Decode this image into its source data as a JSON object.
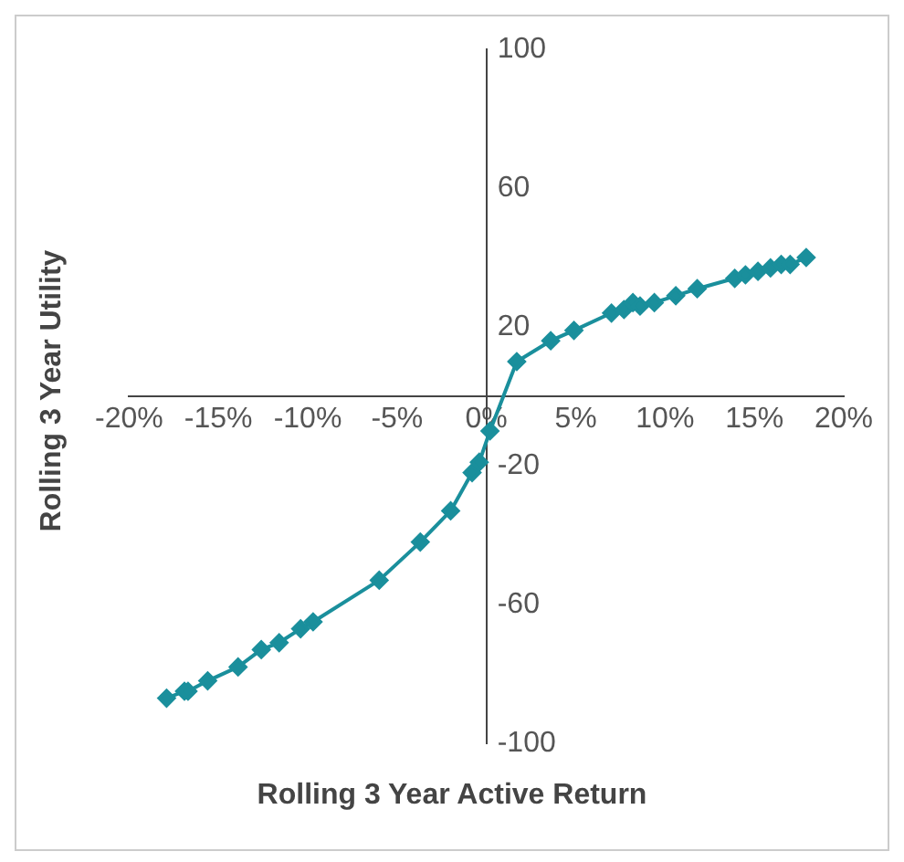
{
  "chart_data": {
    "type": "line",
    "xlabel": "Rolling 3 Year Active Return",
    "ylabel": "Rolling 3 Year Utility",
    "series": [
      {
        "color": "#1a8f9c",
        "x": [
          -17.9,
          -16.9,
          -16.7,
          -15.6,
          -13.9,
          -12.6,
          -11.6,
          -10.4,
          -9.7,
          -6.0,
          -3.7,
          -2.0,
          -0.8,
          -0.4,
          0.2,
          1.7,
          3.6,
          4.9,
          7.0,
          7.7,
          8.2,
          8.6,
          9.4,
          10.6,
          11.8,
          13.9,
          14.5,
          15.2,
          15.9,
          16.5,
          17.0,
          17.9
        ],
        "values": [
          -87,
          -85,
          -85,
          -82,
          -78,
          -73,
          -71,
          -67,
          -65,
          -53,
          -42,
          -33,
          -22,
          -19,
          -10,
          10,
          16,
          19,
          24,
          25,
          27,
          26,
          27,
          29,
          31,
          34,
          35,
          36,
          37,
          38,
          38,
          40
        ]
      }
    ],
    "xlim": [
      -20,
      20
    ],
    "ylim": [
      -100,
      100
    ],
    "xticks": [
      {
        "value": -20,
        "label": "-20%"
      },
      {
        "value": -15,
        "label": "-15%"
      },
      {
        "value": -10,
        "label": "-10%"
      },
      {
        "value": -5,
        "label": "-5%"
      },
      {
        "value": 0,
        "label": "0%"
      },
      {
        "value": 5,
        "label": "5%"
      },
      {
        "value": 10,
        "label": "10%"
      },
      {
        "value": 15,
        "label": "15%"
      },
      {
        "value": 20,
        "label": "20%"
      }
    ],
    "yticks": [
      -100,
      -60,
      -20,
      20,
      60,
      100
    ],
    "grid": false,
    "legend": false,
    "marker": "diamond",
    "line_style": "solid"
  }
}
